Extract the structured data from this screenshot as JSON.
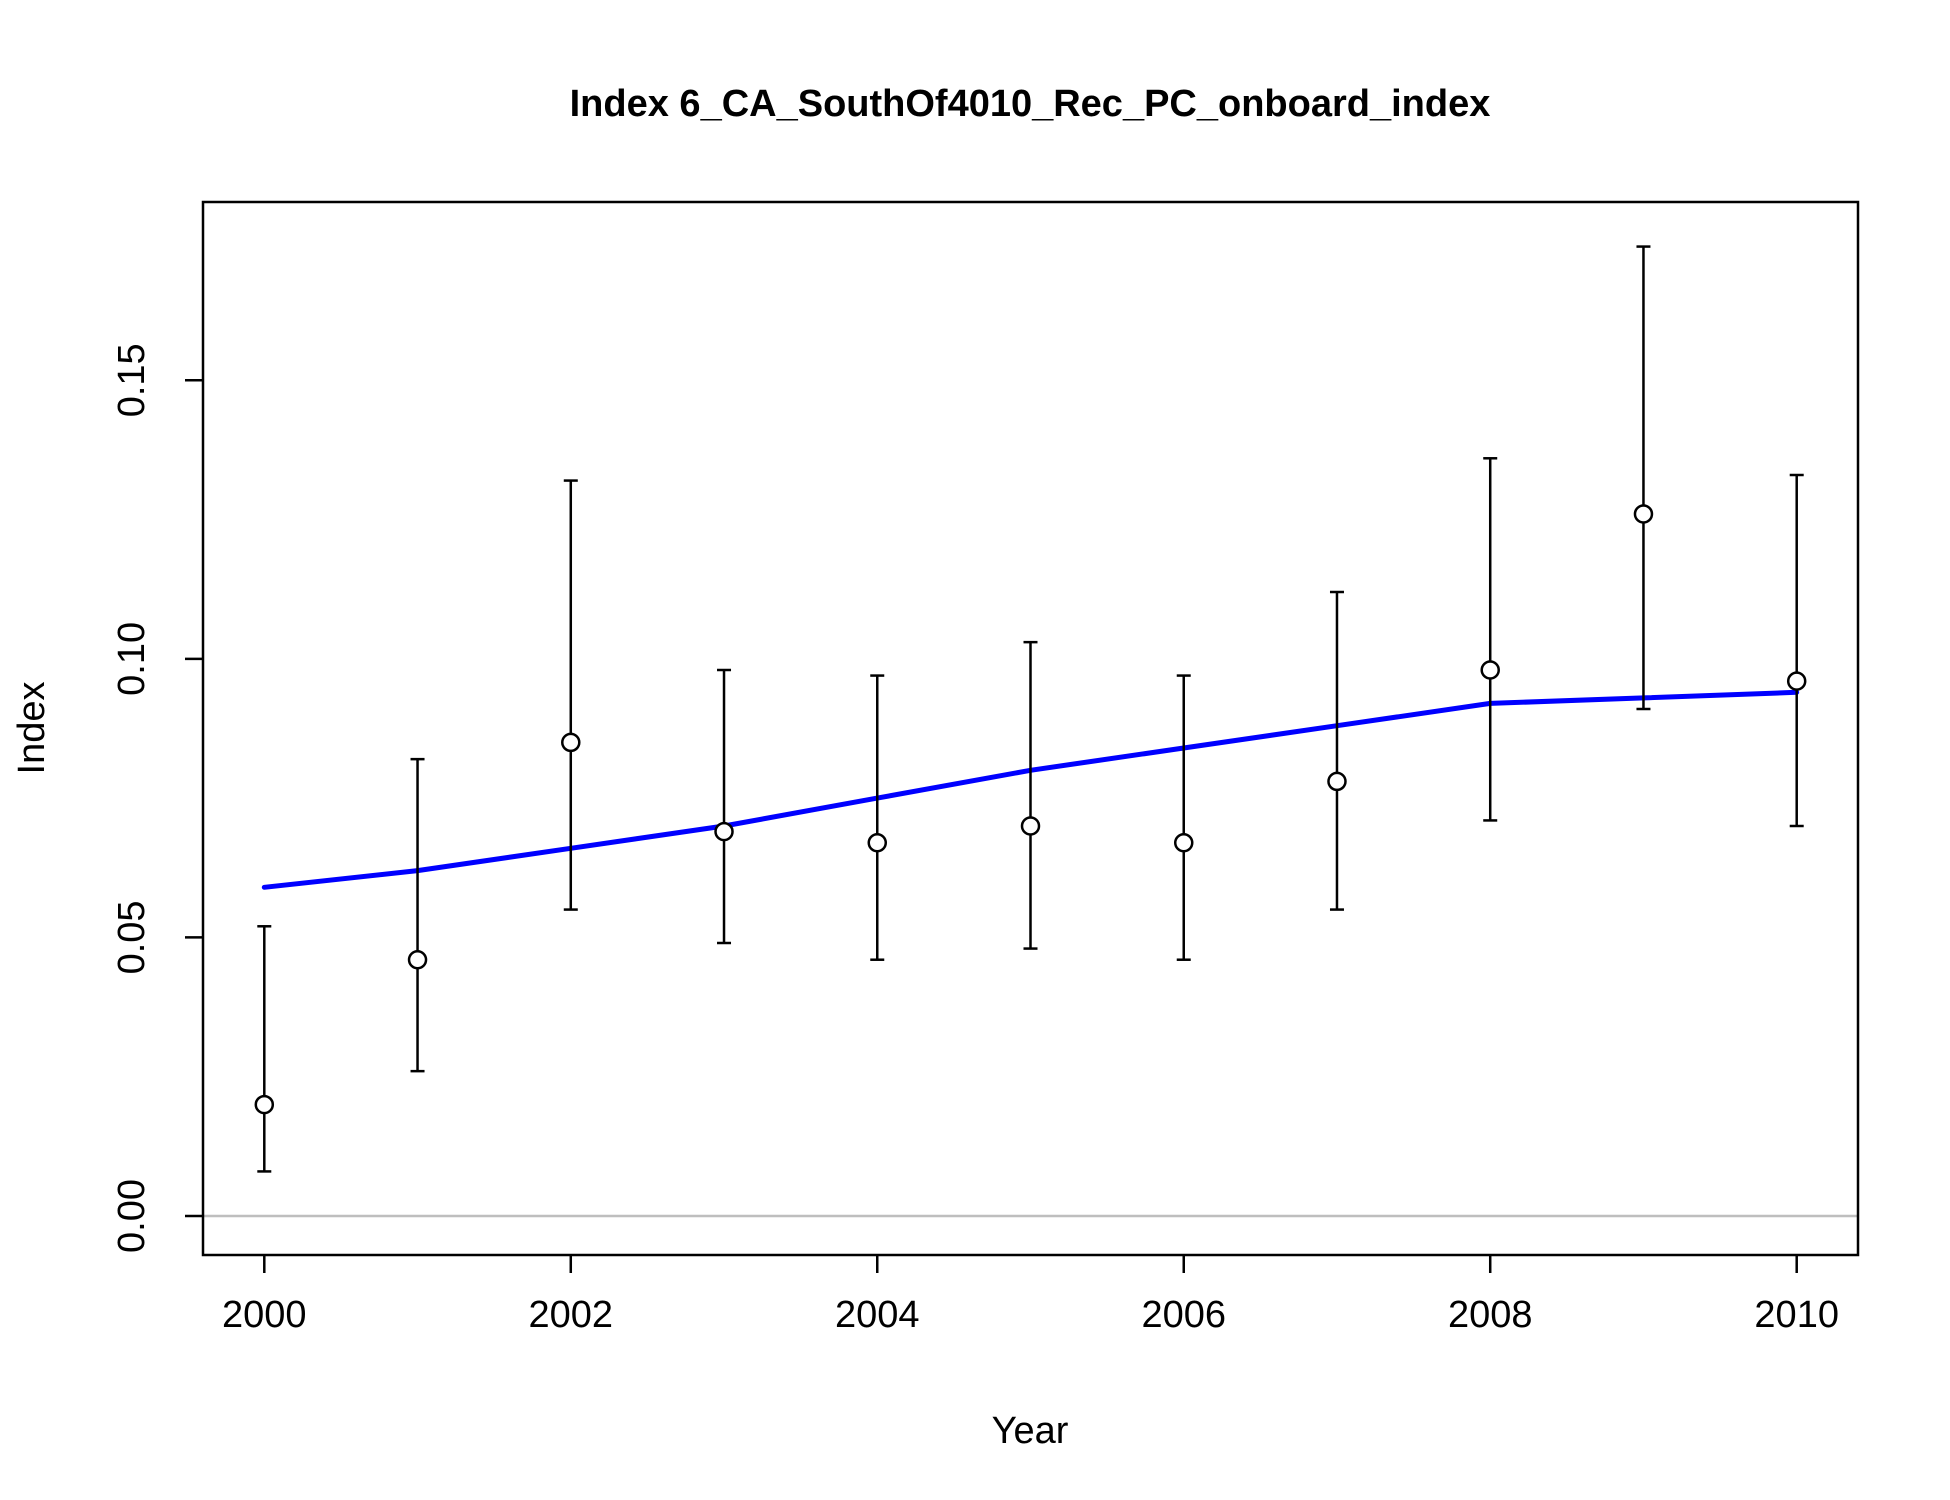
{
  "chart_data": {
    "type": "scatter",
    "title": "Index 6_CA_SouthOf4010_Rec_PC_onboard_index",
    "xlabel": "Year",
    "ylabel": "Index",
    "xlim": [
      1999.6,
      2010.4
    ],
    "ylim": [
      -0.007,
      0.182
    ],
    "x_ticks": [
      2000,
      2002,
      2004,
      2006,
      2008,
      2010
    ],
    "x_tick_labels": [
      "2000",
      "2002",
      "2004",
      "2006",
      "2008",
      "2010"
    ],
    "y_ticks": [
      0.0,
      0.05,
      0.1,
      0.15
    ],
    "y_tick_labels": [
      "0.00",
      "0.05",
      "0.10",
      "0.15"
    ],
    "grid": false,
    "reference_line": {
      "y": 0.0,
      "color": "#bebebe"
    },
    "series": [
      {
        "type": "points_with_errorbars",
        "color": "#000000",
        "x": [
          2000,
          2001,
          2002,
          2003,
          2004,
          2005,
          2006,
          2007,
          2008,
          2009,
          2010
        ],
        "values": [
          0.02,
          0.046,
          0.085,
          0.069,
          0.067,
          0.07,
          0.067,
          0.078,
          0.098,
          0.126,
          0.096
        ],
        "lower": [
          0.008,
          0.026,
          0.055,
          0.049,
          0.046,
          0.048,
          0.046,
          0.055,
          0.071,
          0.091,
          0.07
        ],
        "upper": [
          0.052,
          0.082,
          0.132,
          0.098,
          0.097,
          0.103,
          0.097,
          0.112,
          0.136,
          0.174,
          0.133
        ]
      },
      {
        "type": "line",
        "color": "#0000ff",
        "x": [
          2000,
          2001,
          2002,
          2003,
          2004,
          2005,
          2006,
          2007,
          2008,
          2009,
          2010
        ],
        "values": [
          0.059,
          0.062,
          0.066,
          0.07,
          0.075,
          0.08,
          0.084,
          0.088,
          0.092,
          0.093,
          0.094
        ]
      }
    ]
  }
}
